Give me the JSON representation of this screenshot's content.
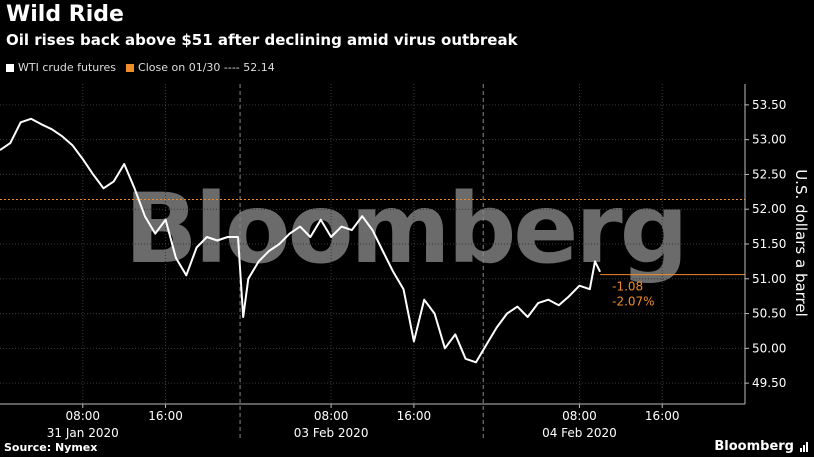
{
  "header": {
    "title": "Wild Ride",
    "subtitle": "Oil rises back above $51 after declining amid virus outbreak"
  },
  "legend": {
    "series_label": "WTI crude futures",
    "close_label": "Close on 01/30 ---- 52.14"
  },
  "footer": {
    "source": "Source: Nymex",
    "brand": "Bloomberg"
  },
  "watermark": "Bloomberg",
  "colors": {
    "background": "#000000",
    "line": "#ffffff",
    "accent": "#f08c2b",
    "grid": "#3a3a3a"
  },
  "chart_data": {
    "type": "line",
    "ylabel": "U.S. dollars a barrel",
    "y_axis_side": "right",
    "ylim": [
      49.2,
      53.8
    ],
    "y_ticks": [
      "53.50",
      "53.00",
      "52.50",
      "52.00",
      "51.50",
      "51.00",
      "50.50",
      "50.00",
      "49.50"
    ],
    "x_ticks": [
      {
        "label": "08:00",
        "x": 8
      },
      {
        "label": "16:00",
        "x": 16
      },
      {
        "label": "08:00",
        "x": 32
      },
      {
        "label": "16:00",
        "x": 40
      },
      {
        "label": "08:00",
        "x": 56
      },
      {
        "label": "16:00",
        "x": 64
      }
    ],
    "x_date_labels": [
      {
        "label": "31 Jan 2020",
        "x": 8
      },
      {
        "label": "03 Feb 2020",
        "x": 32
      },
      {
        "label": "04 Feb 2020",
        "x": 56
      }
    ],
    "xlim": [
      0,
      72
    ],
    "day_separators": [
      23.2,
      46.7
    ],
    "reference_line": {
      "value": 52.14,
      "label": "Close on 01/30"
    },
    "last_price_line": {
      "value": 51.06
    },
    "annotations": [
      "-1.08",
      "-2.07%"
    ],
    "series": [
      {
        "name": "WTI crude futures",
        "x": [
          0,
          1,
          2,
          3,
          4,
          5,
          6,
          7,
          8,
          9,
          10,
          11,
          12,
          13,
          14,
          15,
          16,
          17,
          18,
          19,
          20,
          21,
          22,
          23,
          23.5,
          24,
          25,
          26,
          27,
          28,
          29,
          30,
          31,
          32,
          33,
          34,
          35,
          36,
          37,
          38,
          39,
          40,
          41,
          42,
          43,
          44,
          45,
          46,
          47,
          48,
          49,
          50,
          51,
          52,
          53,
          54,
          55,
          56,
          57,
          57.5,
          58
        ],
        "values": [
          52.85,
          52.95,
          53.25,
          53.3,
          53.22,
          53.15,
          53.05,
          52.92,
          52.72,
          52.5,
          52.3,
          52.4,
          52.65,
          52.3,
          51.9,
          51.65,
          51.85,
          51.3,
          51.05,
          51.45,
          51.6,
          51.55,
          51.6,
          51.6,
          50.45,
          51.0,
          51.25,
          51.4,
          51.5,
          51.65,
          51.75,
          51.6,
          51.85,
          51.6,
          51.75,
          51.7,
          51.9,
          51.7,
          51.4,
          51.1,
          50.85,
          50.1,
          50.7,
          50.5,
          50.0,
          50.2,
          49.85,
          49.8,
          50.05,
          50.3,
          50.5,
          50.6,
          50.45,
          50.65,
          50.7,
          50.62,
          50.75,
          50.9,
          50.85,
          51.25,
          51.1
        ]
      }
    ]
  }
}
